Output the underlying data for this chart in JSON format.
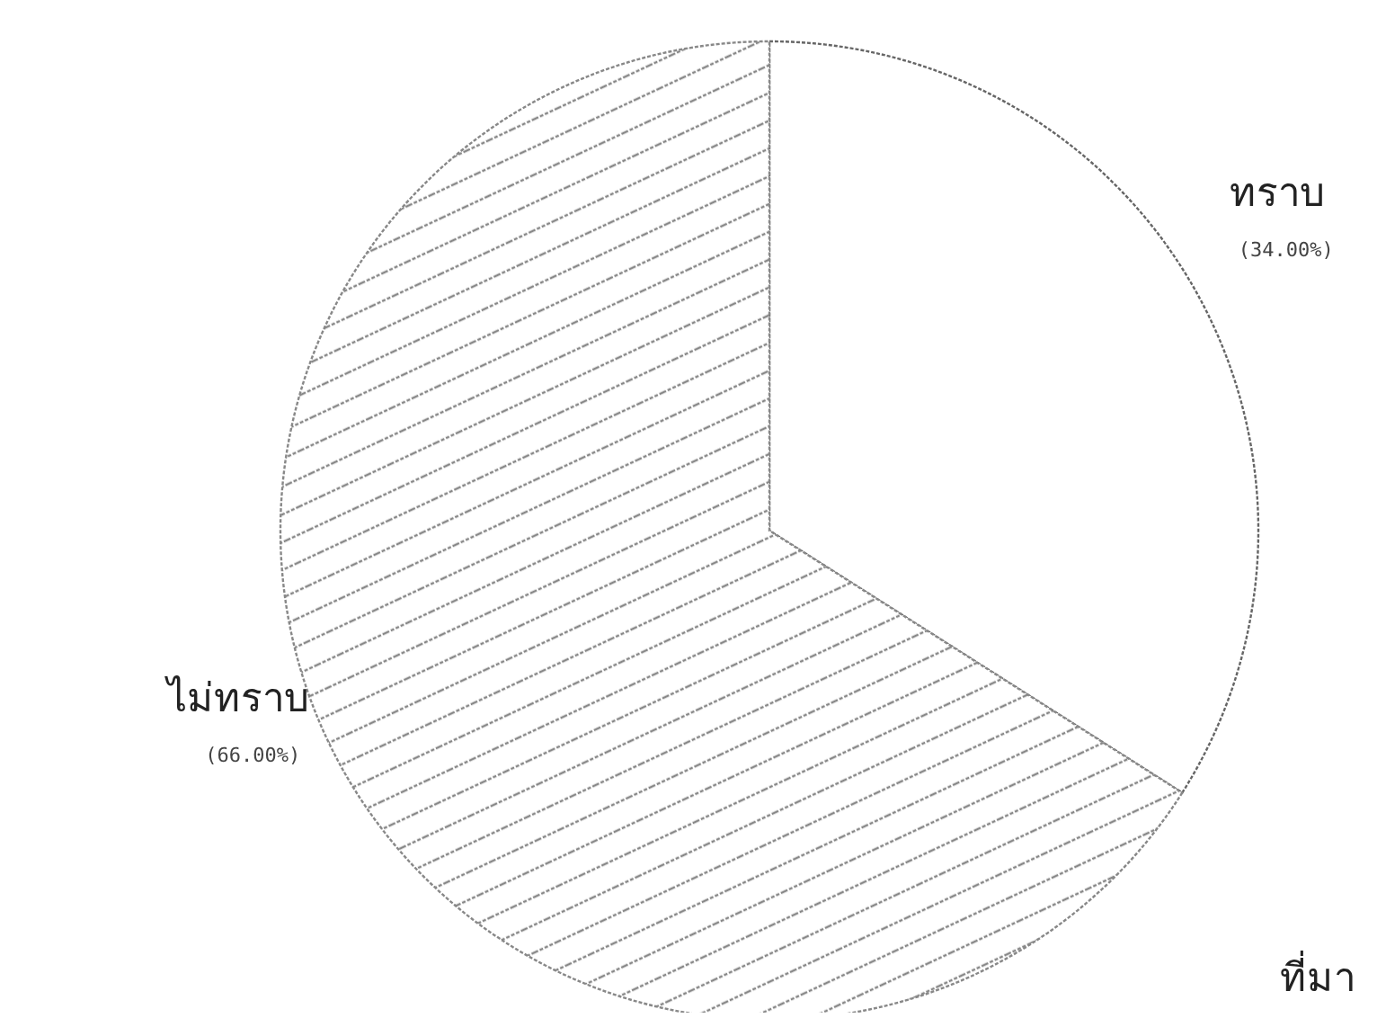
{
  "chart_data": {
    "type": "pie",
    "categories": [
      "ทราบ",
      "ไม่ทราบ"
    ],
    "values": [
      34,
      66
    ],
    "value_labels": [
      "(34.00%)",
      "(66.00%)"
    ],
    "colors": [
      "#666666",
      "#888888"
    ],
    "annotations": [
      "ที่มา"
    ]
  }
}
